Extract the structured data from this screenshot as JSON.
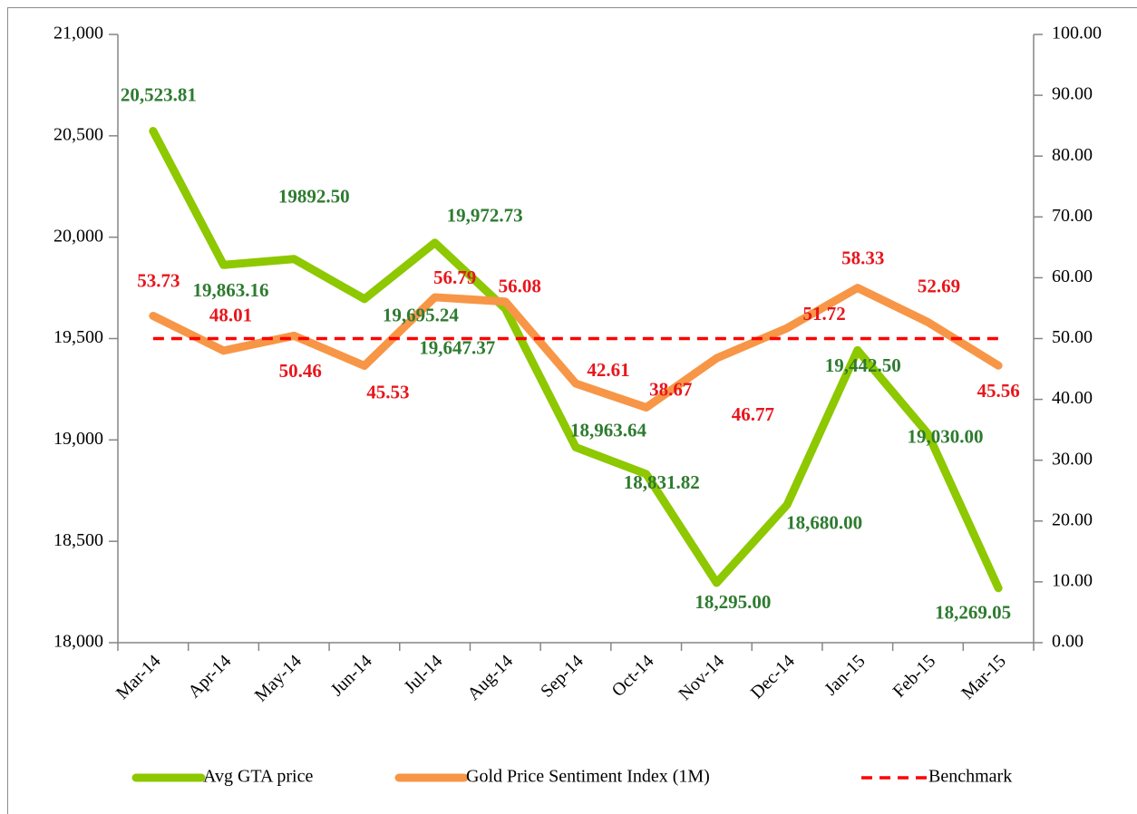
{
  "chart_data": {
    "type": "line",
    "categories": [
      "Mar-14",
      "Apr-14",
      "May-14",
      "Jun-14",
      "Jul-14",
      "Aug-14",
      "Sep-14",
      "Oct-14",
      "Nov-14",
      "Dec-14",
      "Jan-15",
      "Feb-15",
      "Mar-15"
    ],
    "series": [
      {
        "name": "Avg GTA price",
        "color": "#8dc800",
        "label_color": "#2e7b30",
        "values": [
          20523.81,
          19863.16,
          19892.5,
          19695.24,
          19972.73,
          19647.37,
          18963.64,
          18831.82,
          18295.0,
          18680.0,
          19442.5,
          19030.0,
          18269.05
        ],
        "value_labels": [
          "20,523.81",
          "19,863.16",
          "19892.50",
          "19,695.24",
          "19,972.73",
          "19,647.37",
          "18,963.64",
          "18,831.82",
          "18,295.00",
          "18,680.00",
          "19,442.50",
          "19,030.00",
          "18,269.05"
        ]
      },
      {
        "name": "Gold Price Sentiment Index (1M)",
        "color": "#f79646",
        "label_color": "#e8161c",
        "axis": "y2",
        "values": [
          53.73,
          48.01,
          50.46,
          45.53,
          56.79,
          56.08,
          42.61,
          38.67,
          46.77,
          51.72,
          58.33,
          52.69,
          45.56
        ]
      },
      {
        "name": "Benchmark",
        "color": "#ff0000",
        "axis": "y2",
        "style": "dashed",
        "values": [
          50,
          50,
          50,
          50,
          50,
          50,
          50,
          50,
          50,
          50,
          50,
          50,
          50
        ]
      }
    ],
    "ylim": [
      18000,
      21000
    ],
    "yticks": [
      {
        "value": 18000,
        "label": "18,000"
      },
      {
        "value": 18500,
        "label": "18,500"
      },
      {
        "value": 19000,
        "label": "19,000"
      },
      {
        "value": 19500,
        "label": "19,500"
      },
      {
        "value": 20000,
        "label": "20,000"
      },
      {
        "value": 20500,
        "label": "20,500"
      },
      {
        "value": 21000,
        "label": "21,000"
      }
    ],
    "y2lim": [
      0,
      100
    ],
    "y2ticks": [
      {
        "value": 0,
        "label": "0.00"
      },
      {
        "value": 10,
        "label": "10.00"
      },
      {
        "value": 20,
        "label": "20.00"
      },
      {
        "value": 30,
        "label": "30.00"
      },
      {
        "value": 40,
        "label": "40.00"
      },
      {
        "value": 50,
        "label": "50.00"
      },
      {
        "value": 60,
        "label": "60.00"
      },
      {
        "value": 70,
        "label": "70.00"
      },
      {
        "value": 80,
        "label": "80.00"
      },
      {
        "value": 90,
        "label": "90.00"
      },
      {
        "value": 100,
        "label": "100.00"
      }
    ],
    "legend": "bottom"
  }
}
